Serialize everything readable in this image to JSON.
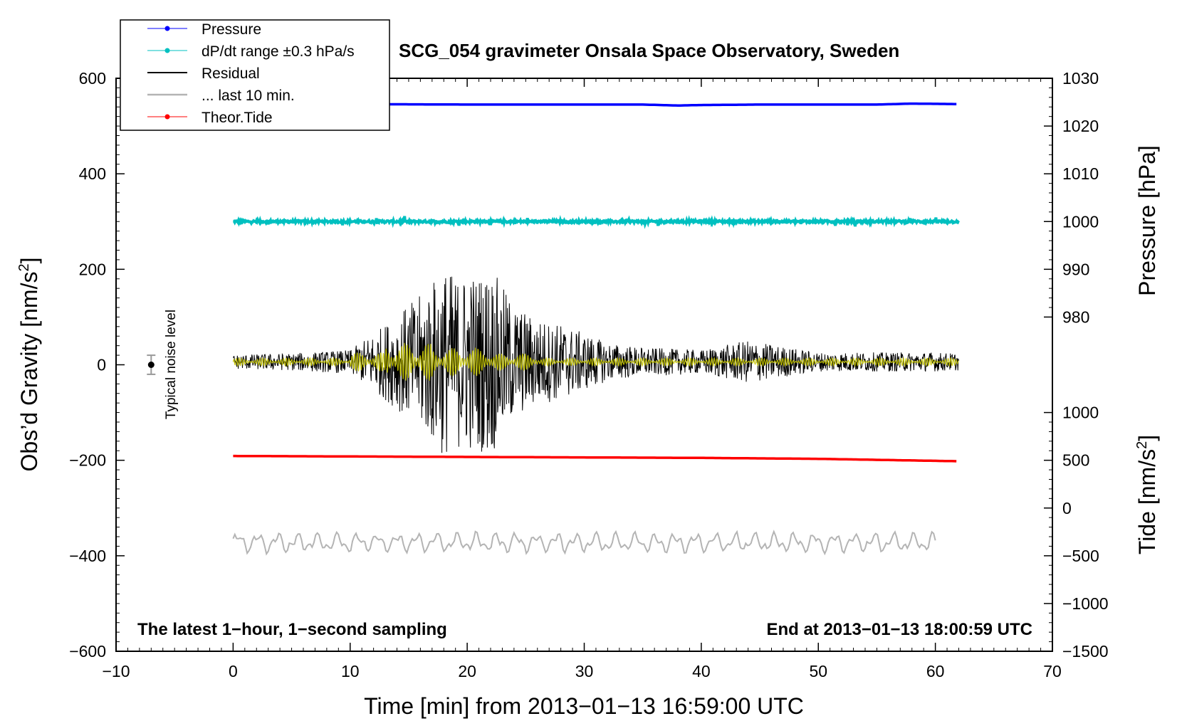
{
  "chart_data": {
    "type": "line",
    "title": "SCG_054 gravimeter Onsala Space Observatory, Sweden",
    "xlabel": "Time [min] from 2013−01−13 16:59:00 UTC",
    "ylabel_left": "Obs’d Gravity [nm/s2]",
    "ylabel_left_main": "Obs’d Gravity [nm/s",
    "ylabel_left_sup": "2",
    "ylabel_left_close": "]",
    "ylabel_right_top": "Pressure [hPa]",
    "ylabel_right_bottom": "Tide [nm/s2]",
    "ylabel_right_bottom_main": "Tide [nm/s",
    "ylabel_right_bottom_sup": "2",
    "ylabel_right_bottom_close": "]",
    "xlim": [
      -10,
      70
    ],
    "ylim_left": [
      -600,
      600
    ],
    "ylim_pressure": [
      970,
      1030
    ],
    "ylim_tide": [
      -1500,
      1000
    ],
    "xticks": [
      -10,
      0,
      10,
      20,
      30,
      40,
      50,
      60,
      70
    ],
    "xtick_labels": [
      "−10",
      "0",
      "10",
      "20",
      "30",
      "40",
      "50",
      "60",
      "70"
    ],
    "yticks_left": [
      600,
      400,
      200,
      0,
      -200,
      -400,
      -600
    ],
    "ytick_labels_left": [
      "600",
      "400",
      "200",
      "0",
      "−200",
      "−400",
      "−600"
    ],
    "yticks_pressure": [
      1030,
      1020,
      1010,
      1000,
      990,
      980
    ],
    "ytick_labels_pressure": [
      "1030",
      "1020",
      "1010",
      "1000",
      "990",
      "980"
    ],
    "yticks_tide": [
      1000,
      500,
      0,
      -500,
      -1000,
      -1500
    ],
    "ytick_labels_tide": [
      "1000",
      "500",
      "0",
      "−500",
      "−1000",
      "−1500"
    ],
    "annotations": {
      "bottom_left": "The latest 1−hour, 1−second sampling",
      "bottom_right": "End at 2013−01−13 18:00:59 UTC",
      "noise_label": "Typical noise level"
    },
    "noise_bar": {
      "x": -7,
      "y": 0,
      "range": [
        -20,
        20
      ]
    },
    "legend": {
      "placement": "top-left",
      "entries": [
        {
          "label": "Pressure",
          "color": "#0000ff",
          "marker": true
        },
        {
          "label": "dP/dt range ±0.3 hPa/s",
          "color": "#00c0c0",
          "marker": true
        },
        {
          "label": "Residual",
          "color": "#000000",
          "marker": false
        },
        {
          "label": "... last 10 min.",
          "color": "#b4b4b4",
          "marker": false
        },
        {
          "label": "Theor.Tide",
          "color": "#ff0000",
          "marker": true
        }
      ]
    },
    "series": [
      {
        "name": "Pressure",
        "axis": "pressure",
        "color": "#0000ff",
        "x": [
          0,
          10,
          20,
          30,
          35,
          38,
          40,
          45,
          50,
          55,
          58,
          62
        ],
        "y": [
          1024.6,
          1024.6,
          1024.5,
          1024.5,
          1024.5,
          1024.3,
          1024.4,
          1024.5,
          1024.5,
          1024.5,
          1024.7,
          1024.6
        ]
      },
      {
        "name": "dP/dt range ±0.3 hPa/s",
        "axis": "pressure",
        "color": "#00c0c0",
        "x": [
          0,
          62
        ],
        "y": [
          1000,
          1000
        ]
      },
      {
        "name": "Residual",
        "axis": "left",
        "color": "#000000",
        "x": [
          0,
          5,
          10,
          12,
          14,
          16,
          18,
          19,
          20,
          21,
          22,
          24,
          26,
          28,
          30,
          32,
          35,
          40,
          44,
          50,
          55,
          60,
          62
        ],
        "amplitude": [
          15,
          18,
          25,
          60,
          100,
          140,
          200,
          180,
          190,
          185,
          200,
          120,
          90,
          80,
          60,
          40,
          30,
          25,
          45,
          20,
          20,
          20,
          18
        ]
      },
      {
        "name": "Theor.Tide",
        "axis": "left",
        "color": "#ff0000",
        "x": [
          0,
          10,
          20,
          30,
          40,
          50,
          62
        ],
        "y": [
          -191,
          -192,
          -193,
          -194,
          -195,
          -197,
          -202
        ]
      },
      {
        "name": "... last 10 min.",
        "axis": "left",
        "color": "#b4b4b4",
        "x": [
          0,
          60
        ],
        "center": -372,
        "amplitude": 25
      }
    ]
  }
}
